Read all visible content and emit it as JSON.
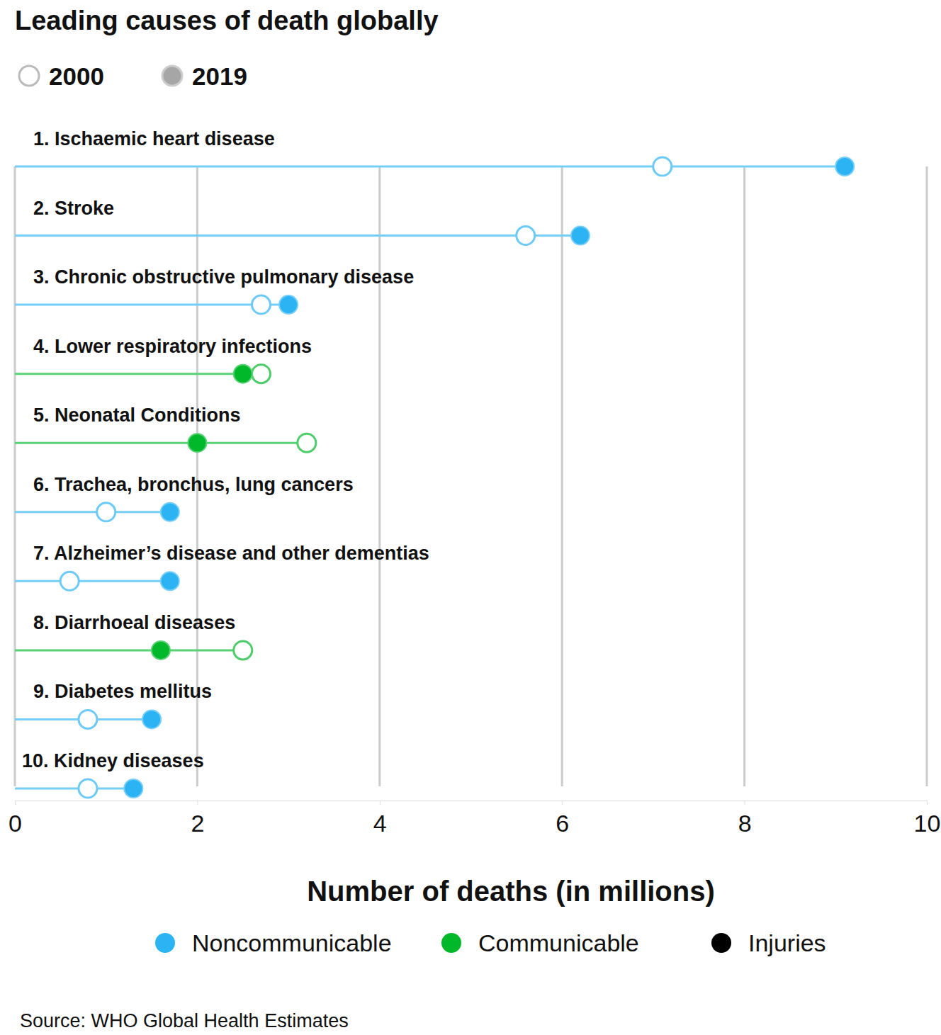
{
  "chart_data": {
    "type": "dumbbell",
    "title": "Leading causes of death globally",
    "x_label": "Number of deaths (in millions)",
    "source": "Source: WHO Global Health Estimates",
    "categories": [
      "1. Ischaemic heart disease",
      "2. Stroke",
      "3. Chronic obstructive pulmonary disease",
      "4. Lower respiratory infections",
      "5. Neonatal Conditions",
      "6. Trachea, bronchus, lung cancers",
      "7. Alzheimer’s disease and other dementias",
      "8. Diarrhoeal diseases",
      "9. Diabetes mellitus",
      "10. Kidney diseases"
    ],
    "colors": [
      "#2bb3f3",
      "#2bb3f3",
      "#2bb3f3",
      "#00b82a",
      "#00b82a",
      "#2bb3f3",
      "#2bb3f3",
      "#00b82a",
      "#2bb3f3",
      "#2bb3f3"
    ],
    "series": [
      {
        "name": "2000",
        "color": "#a6a6a6",
        "marker": "open",
        "values": [
          7.1,
          5.6,
          2.7,
          2.7,
          3.2,
          1.0,
          0.6,
          2.5,
          0.8,
          0.8
        ]
      },
      {
        "name": "2019",
        "color": "#a6a6a6",
        "marker": "filled",
        "values": [
          9.1,
          6.2,
          3.0,
          2.5,
          2.0,
          1.7,
          1.7,
          1.6,
          1.5,
          1.3
        ]
      }
    ],
    "cause_types": [
      {
        "name": "Noncommunicable",
        "color": "#2bb3f3"
      },
      {
        "name": "Communicable",
        "color": "#00b82a"
      },
      {
        "name": "Injuries",
        "color": "#000000"
      }
    ],
    "xlim": [
      0,
      10
    ],
    "xticks": [
      0,
      2,
      4,
      6,
      8,
      10
    ],
    "grid": true,
    "legend": "top-left"
  }
}
